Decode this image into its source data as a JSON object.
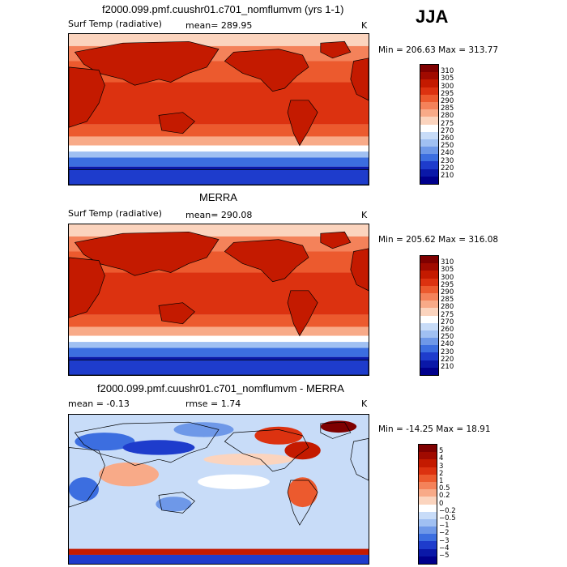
{
  "season": "JJA",
  "panels": [
    {
      "title": "f2000.099.pmf.cuushr01.c701_nomflumvm (yrs 1-1)",
      "variable": "Surf Temp (radiative)",
      "stat1": "mean= 289.95",
      "stat2": "",
      "units": "K",
      "minmax": "Min = 206.63 Max = 313.77",
      "colorbar_labels": [
        "310",
        "305",
        "300",
        "295",
        "290",
        "285",
        "280",
        "275",
        "270",
        "260",
        "250",
        "240",
        "230",
        "220",
        "210"
      ],
      "colorbar_colors": [
        "#7f0000",
        "#a00a00",
        "#c41a00",
        "#dc3210",
        "#ec5a2e",
        "#f4825a",
        "#f8aa88",
        "#fbd4be",
        "#ffffff",
        "#c8dcf8",
        "#a0c0f2",
        "#6e98e8",
        "#3c6ee0",
        "#1e3ccc",
        "#0a18a8",
        "#00008c"
      ],
      "map_style": "temp"
    },
    {
      "title": "MERRA",
      "variable": "Surf Temp (radiative)",
      "stat1": "mean= 290.08",
      "stat2": "",
      "units": "K",
      "minmax": "Min = 205.62 Max = 316.08",
      "colorbar_labels": [
        "310",
        "305",
        "300",
        "295",
        "290",
        "285",
        "280",
        "275",
        "270",
        "260",
        "250",
        "240",
        "230",
        "220",
        "210"
      ],
      "colorbar_colors": [
        "#7f0000",
        "#a00a00",
        "#c41a00",
        "#dc3210",
        "#ec5a2e",
        "#f4825a",
        "#f8aa88",
        "#fbd4be",
        "#ffffff",
        "#c8dcf8",
        "#a0c0f2",
        "#6e98e8",
        "#3c6ee0",
        "#1e3ccc",
        "#0a18a8",
        "#00008c"
      ],
      "map_style": "temp"
    },
    {
      "title": "f2000.099.pmf.cuushr01.c701_nomflumvm - MERRA",
      "variable": "mean =   -0.13",
      "stat1": "rmse =    1.74",
      "stat2": "",
      "units": "K",
      "minmax": "Min = -14.25 Max =  18.91",
      "colorbar_labels": [
        "5",
        "4",
        "3",
        "2",
        "1",
        "0.5",
        "0.2",
        "0",
        "−0.2",
        "−0.5",
        "−1",
        "−2",
        "−3",
        "−4",
        "−5"
      ],
      "colorbar_colors": [
        "#7f0000",
        "#a00a00",
        "#c41a00",
        "#dc3210",
        "#ec5a2e",
        "#f4825a",
        "#f8aa88",
        "#fbd4be",
        "#ffffff",
        "#c8dcf8",
        "#a0c0f2",
        "#6e98e8",
        "#3c6ee0",
        "#1e3ccc",
        "#0a18a8",
        "#00008c"
      ],
      "map_style": "diff"
    }
  ]
}
